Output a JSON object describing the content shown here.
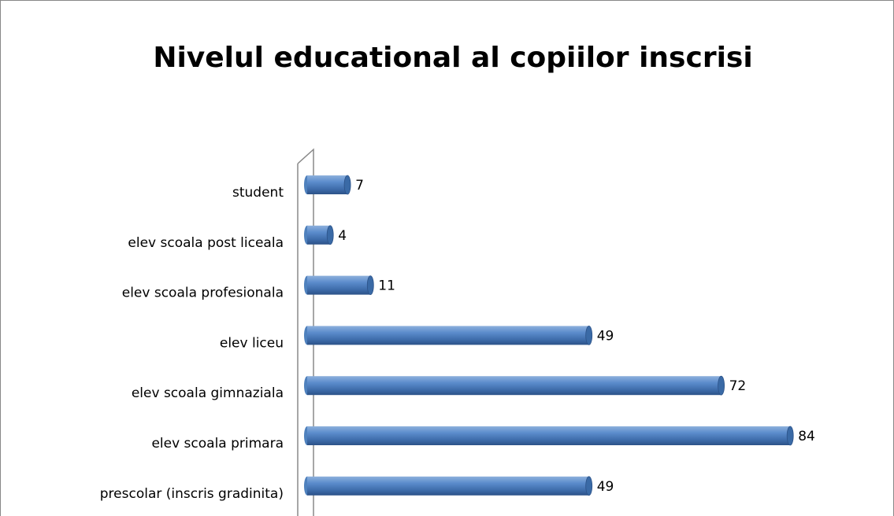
{
  "chart_data": {
    "type": "bar",
    "orientation": "horizontal",
    "title": "Nivelul educational al copiilor inscrisi",
    "categories": [
      "student",
      "elev scoala post liceala",
      "elev scoala profesionala",
      "elev liceu",
      "elev scoala gimnaziala",
      "elev scoala primara",
      "prescolar (inscris gradinita)"
    ],
    "values": [
      7,
      4,
      11,
      49,
      72,
      84,
      49
    ],
    "color": "#4f81bd"
  }
}
